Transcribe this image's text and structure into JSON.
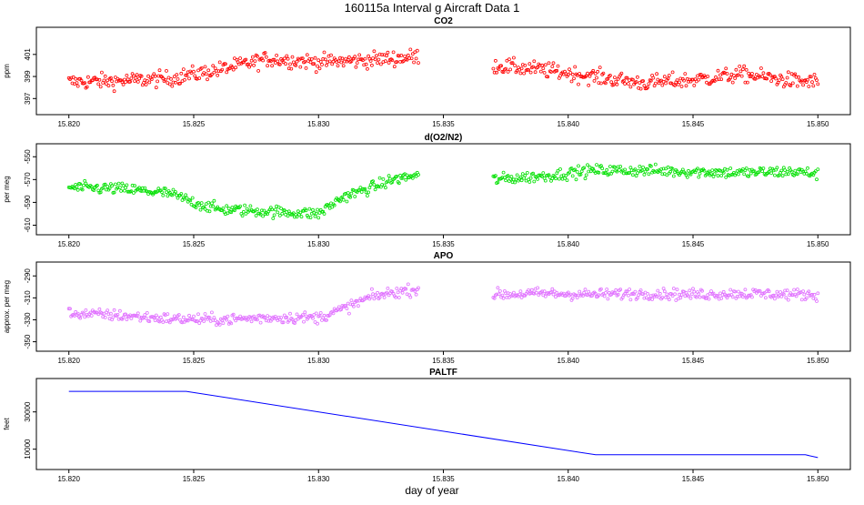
{
  "figure": {
    "title": "160115a   Interval g Aircraft Data 1",
    "xlabel": "day of year"
  },
  "chart_data": [
    {
      "type": "scatter",
      "title": "CO2",
      "ylabel": "ppm",
      "color": "#ff0000",
      "xlim": [
        15.8195,
        15.8505
      ],
      "ylim": [
        396.2,
        402.8
      ],
      "xticks": [
        15.82,
        15.825,
        15.83,
        15.835,
        15.84,
        15.845,
        15.85
      ],
      "xtick_labels": [
        "15.820",
        "15.825",
        "15.830",
        "15.835",
        "15.840",
        "15.845",
        "15.850"
      ],
      "yticks": [
        397,
        399,
        401
      ],
      "ytick_labels": [
        "397",
        "399",
        "401"
      ],
      "segments": [
        {
          "x": [
            15.82,
            15.822,
            15.824,
            15.826,
            15.828,
            15.83,
            15.832,
            15.834
          ],
          "y": [
            398.5,
            398.6,
            398.8,
            399.6,
            400.6,
            400.3,
            400.5,
            400.8
          ]
        },
        {
          "x": [
            15.837,
            15.839,
            15.841,
            15.843,
            15.845,
            15.847,
            15.849,
            15.85
          ],
          "y": [
            400.0,
            399.6,
            399.0,
            398.4,
            398.7,
            399.2,
            398.6,
            398.5
          ]
        }
      ],
      "noise": 0.7
    },
    {
      "type": "scatter",
      "title": "d(O2/N2)",
      "ylabel": "per meg",
      "color": "#00e000",
      "xlim": [
        15.8195,
        15.8505
      ],
      "ylim": [
        -612,
        -545
      ],
      "xticks": [
        15.82,
        15.825,
        15.83,
        15.835,
        15.84,
        15.845,
        15.85
      ],
      "xtick_labels": [
        "15.820",
        "15.825",
        "15.830",
        "15.835",
        "15.840",
        "15.845",
        "15.850"
      ],
      "yticks": [
        -610,
        -590,
        -570,
        -550
      ],
      "ytick_labels": [
        "-610",
        "-590",
        "-570",
        "-550"
      ],
      "segments": [
        {
          "x": [
            15.82,
            15.822,
            15.824,
            15.825,
            15.826,
            15.828,
            15.83,
            15.831,
            15.832,
            15.833,
            15.834
          ],
          "y": [
            -577,
            -578,
            -582,
            -590,
            -596,
            -598,
            -600,
            -585,
            -578,
            -570,
            -566
          ]
        },
        {
          "x": [
            15.837,
            15.839,
            15.841,
            15.843,
            15.845,
            15.847,
            15.849,
            15.85
          ],
          "y": [
            -570,
            -567,
            -562,
            -562,
            -563,
            -564,
            -563,
            -565
          ]
        }
      ],
      "noise": 5
    },
    {
      "type": "scatter",
      "title": "APO",
      "ylabel": "approx. per meg",
      "color": "#e070ff",
      "xlim": [
        15.8195,
        15.8505
      ],
      "ylim": [
        -352,
        -284
      ],
      "xticks": [
        15.82,
        15.825,
        15.83,
        15.835,
        15.84,
        15.845,
        15.85
      ],
      "xtick_labels": [
        "15.820",
        "15.825",
        "15.830",
        "15.835",
        "15.840",
        "15.845",
        "15.850"
      ],
      "yticks": [
        -350,
        -330,
        -310,
        -290
      ],
      "ytick_labels": [
        "-350",
        "-330",
        "-310",
        "-290"
      ],
      "segments": [
        {
          "x": [
            15.82,
            15.822,
            15.824,
            15.826,
            15.828,
            15.83,
            15.831,
            15.832,
            15.833,
            15.834
          ],
          "y": [
            -324,
            -326,
            -329,
            -330,
            -328,
            -328,
            -320,
            -310,
            -305,
            -302
          ]
        },
        {
          "x": [
            15.837,
            15.839,
            15.841,
            15.843,
            15.845,
            15.847,
            15.849,
            15.85
          ],
          "y": [
            -307,
            -306,
            -307,
            -306,
            -307,
            -306,
            -307,
            -307
          ]
        }
      ],
      "noise": 5
    },
    {
      "type": "line",
      "title": "PALTF",
      "ylabel": "feet",
      "color": "#0000ff",
      "xlim": [
        15.8195,
        15.8505
      ],
      "ylim": [
        3000,
        44000
      ],
      "xticks": [
        15.82,
        15.825,
        15.83,
        15.835,
        15.84,
        15.845,
        15.85
      ],
      "xtick_labels": [
        "15.820",
        "15.825",
        "15.830",
        "15.835",
        "15.840",
        "15.845",
        "15.850"
      ],
      "yticks": [
        10000,
        30000
      ],
      "ytick_labels": [
        "10000",
        "30000"
      ],
      "x": [
        15.82,
        15.8247,
        15.8411,
        15.8495,
        15.85
      ],
      "y": [
        41000,
        41000,
        7000,
        7000,
        5500
      ]
    }
  ]
}
